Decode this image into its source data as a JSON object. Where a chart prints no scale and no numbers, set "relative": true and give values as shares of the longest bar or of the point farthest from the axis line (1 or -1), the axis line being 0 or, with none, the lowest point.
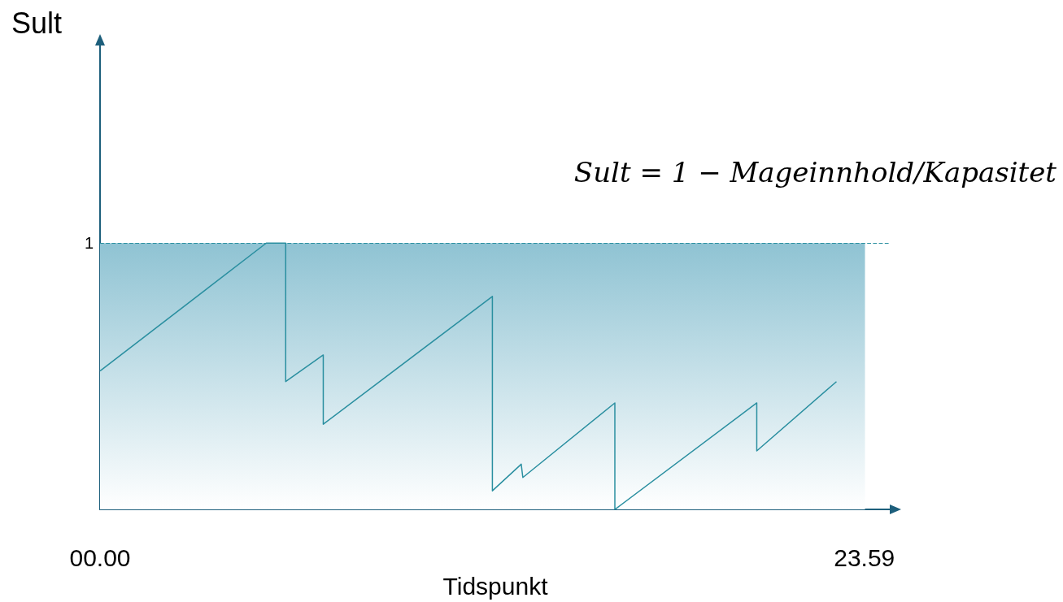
{
  "chart_data": {
    "type": "line",
    "relative": true,
    "xlabel": "Tidspunkt",
    "x": [
      0,
      5.13,
      5.73,
      5.73,
      6.89,
      6.89,
      12.11,
      12.11,
      13.0,
      13.05,
      15.89,
      15.89,
      20.27,
      20.27,
      22.73
    ],
    "series": [
      {
        "color": "#2a8fa0",
        "values": [
          0.52,
          1,
          1,
          0.48,
          0.58,
          0.32,
          0.8,
          0.07,
          0.17,
          0.12,
          0.4,
          0,
          0.4,
          0.22,
          0.48
        ]
      }
    ],
    "xlim": [
      0,
      24.4
    ],
    "xticks": [
      {
        "value": 0,
        "label": "00.00"
      },
      23.59
    ],
    "ref_lines": [
      {
        "axis": "y",
        "value": 1,
        "label": "1",
        "color": "#2a8fa0",
        "line_style": "dashed"
      }
    ],
    "bands": [
      {
        "axis": "x",
        "from": 0,
        "to": 23.61,
        "color": "#8fc3d3"
      }
    ],
    "annotations": [
      "Sult",
      "Sult = 1 − Mageinnhold/Kapasitet"
    ],
    "marker": "none",
    "line_style": "solid",
    "grid": false,
    "legend": false
  }
}
